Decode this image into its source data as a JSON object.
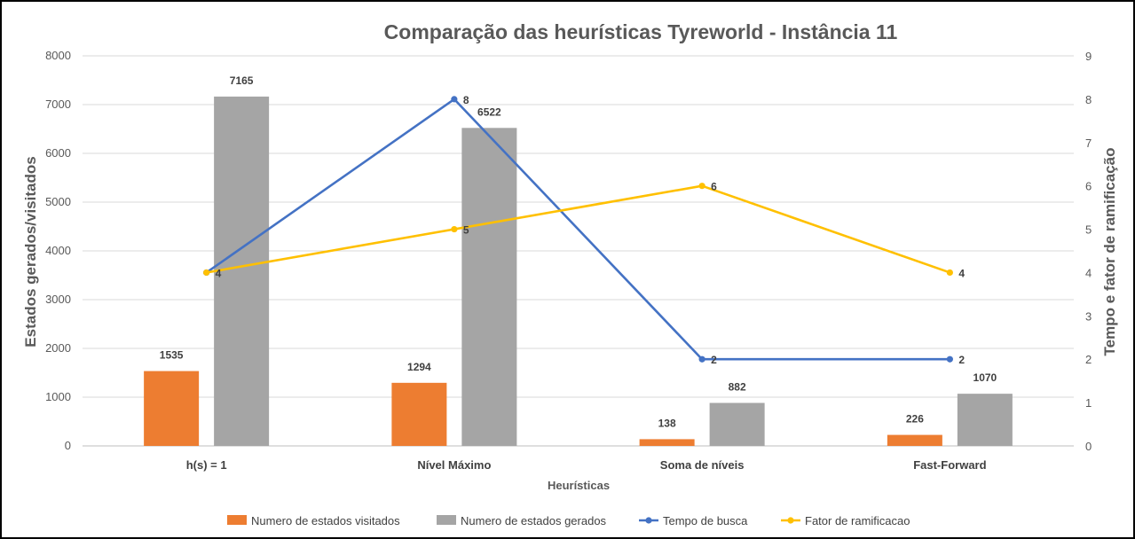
{
  "chart_data": {
    "type": "bar",
    "title": "Comparação das heurísticas Tyreworld - Instância 11",
    "xlabel": "Heurísticas",
    "ylabel": "Estados  gerados/visitados",
    "y2label": "Tempo e fator de ramificação",
    "categories": [
      "h(s) = 1",
      "Nível Máximo",
      "Soma de níveis",
      "Fast-Forward"
    ],
    "ylim": [
      0,
      8000
    ],
    "y_ticks": [
      "0",
      "1000",
      "2000",
      "3000",
      "4000",
      "5000",
      "6000",
      "7000",
      "8000"
    ],
    "y2lim": [
      0,
      9
    ],
    "y2_ticks": [
      "0",
      "1",
      "2",
      "3",
      "4",
      "5",
      "6",
      "7",
      "8",
      "9"
    ],
    "grid": true,
    "legend_position": "bottom",
    "series": [
      {
        "name": "Numero de estados visitados",
        "type": "bar",
        "axis": "left",
        "color": "#ED7D31",
        "values": [
          1535,
          1294,
          138,
          226
        ],
        "labels": [
          "1535",
          "1294",
          "138",
          "226"
        ]
      },
      {
        "name": "Numero de estados gerados",
        "type": "bar",
        "axis": "left",
        "color": "#A5A5A5",
        "values": [
          7165,
          6522,
          882,
          1070
        ],
        "labels": [
          "7165",
          "6522",
          "882",
          "1070"
        ]
      },
      {
        "name": "Tempo de busca",
        "type": "line",
        "axis": "right",
        "color": "#4472C4",
        "values": [
          4,
          8,
          2,
          2
        ],
        "labels": [
          "",
          "8",
          "2",
          "2"
        ]
      },
      {
        "name": "Fator de ramificacao",
        "type": "line",
        "axis": "right",
        "color": "#FFC000",
        "values": [
          4,
          5,
          6,
          4
        ],
        "labels": [
          "4",
          "5",
          "6",
          "4"
        ]
      }
    ]
  }
}
